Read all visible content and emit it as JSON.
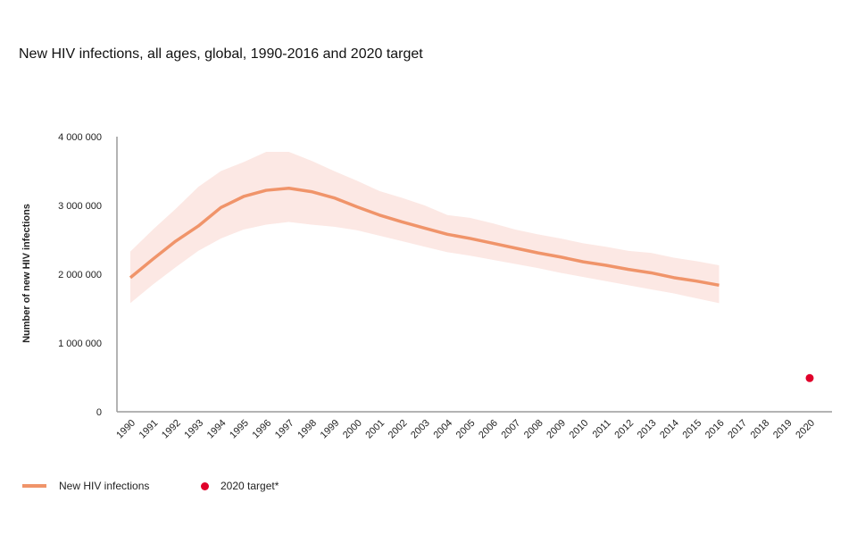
{
  "chart_data": {
    "type": "line",
    "title": "New HIV infections, all ages, global, 1990-2016 and 2020 target",
    "xlabel": "",
    "ylabel": "Number of new HIV infections",
    "ylim": [
      0,
      4000000
    ],
    "yticks": [
      0,
      1000000,
      2000000,
      3000000,
      4000000
    ],
    "ytick_labels": [
      "0",
      "1 000 000",
      "2 000 000",
      "3 000 000",
      "4 000 000"
    ],
    "x": [
      1990,
      1991,
      1992,
      1993,
      1994,
      1995,
      1996,
      1997,
      1998,
      1999,
      2000,
      2001,
      2002,
      2003,
      2004,
      2005,
      2006,
      2007,
      2008,
      2009,
      2010,
      2011,
      2012,
      2013,
      2014,
      2015,
      2016,
      2017,
      2018,
      2019,
      2020
    ],
    "xtick_labels": [
      "1990",
      "1991",
      "1992",
      "1993",
      "1994",
      "1995",
      "1996",
      "1997",
      "1998",
      "1999",
      "2000",
      "2001",
      "2002",
      "2003",
      "2004",
      "2005",
      "2006",
      "2007",
      "2008",
      "2009",
      "2010",
      "2011",
      "2012",
      "2013",
      "2014",
      "2015",
      "2016",
      "2017",
      "2018",
      "2019",
      "2020"
    ],
    "grid": false,
    "legend_position": "bottom-left",
    "series": [
      {
        "name": "New HIV infections",
        "color": "#f0946a",
        "band_color": "#fce8e4",
        "x": [
          1990,
          1991,
          1992,
          1993,
          1994,
          1995,
          1996,
          1997,
          1998,
          1999,
          2000,
          2001,
          2002,
          2003,
          2004,
          2005,
          2006,
          2007,
          2008,
          2009,
          2010,
          2011,
          2012,
          2013,
          2014,
          2015,
          2016
        ],
        "values": [
          1950000,
          2220000,
          2480000,
          2700000,
          2970000,
          3130000,
          3220000,
          3250000,
          3200000,
          3110000,
          2980000,
          2860000,
          2760000,
          2670000,
          2580000,
          2520000,
          2450000,
          2380000,
          2310000,
          2250000,
          2180000,
          2130000,
          2070000,
          2020000,
          1950000,
          1900000,
          1840000
        ],
        "upper": [
          2330000,
          2650000,
          2950000,
          3270000,
          3500000,
          3630000,
          3780000,
          3780000,
          3650000,
          3500000,
          3360000,
          3210000,
          3110000,
          3000000,
          2860000,
          2820000,
          2740000,
          2650000,
          2580000,
          2520000,
          2450000,
          2400000,
          2340000,
          2310000,
          2240000,
          2190000,
          2130000
        ],
        "lower": [
          1580000,
          1850000,
          2100000,
          2340000,
          2520000,
          2650000,
          2720000,
          2760000,
          2720000,
          2690000,
          2640000,
          2560000,
          2480000,
          2400000,
          2320000,
          2270000,
          2210000,
          2150000,
          2090000,
          2020000,
          1960000,
          1900000,
          1840000,
          1780000,
          1720000,
          1650000,
          1580000
        ]
      },
      {
        "name": "2020 target*",
        "color": "#e0002a",
        "x": [
          2020
        ],
        "values": [
          490000
        ]
      }
    ]
  }
}
